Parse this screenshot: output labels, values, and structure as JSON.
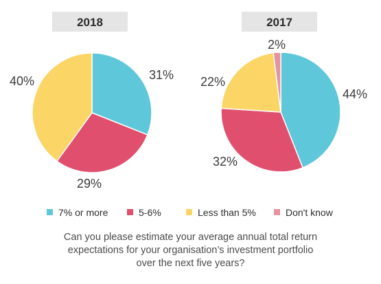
{
  "chart_data": [
    {
      "type": "pie",
      "title": "2018",
      "categories": [
        "7% or more",
        "5-6%",
        "Less than 5%",
        "Don't know"
      ],
      "values": [
        31,
        29,
        40,
        0
      ],
      "labels": [
        "31%",
        "29%",
        "40%",
        ""
      ]
    },
    {
      "type": "pie",
      "title": "2017",
      "categories": [
        "7% or more",
        "5-6%",
        "Less than 5%",
        "Don't know"
      ],
      "values": [
        44,
        32,
        22,
        2
      ],
      "labels": [
        "44%",
        "32%",
        "22%",
        "2%"
      ]
    }
  ],
  "legend": {
    "items": [
      {
        "label": "7% or more",
        "color": "#5ec7d9"
      },
      {
        "label": "5-6%",
        "color": "#e0506e"
      },
      {
        "label": "Less than 5%",
        "color": "#fbd566"
      },
      {
        "label": "Don't know",
        "color": "#e6939f"
      }
    ]
  },
  "caption": {
    "lines": [
      "Can you please estimate your average annual total return",
      "expectations for your organisation’s investment portfolio",
      "over the next five years?"
    ]
  },
  "colors": {
    "year_box": "#e5e5e5",
    "slice_border": "#ffffff"
  }
}
